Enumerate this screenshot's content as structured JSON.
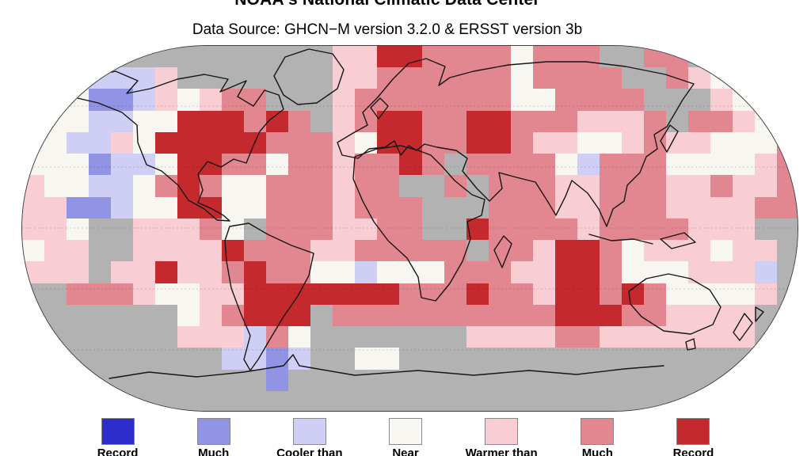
{
  "header": {
    "title": "NOAA's National Climatic Data Center",
    "subtitle": "Data Source: GHCN−M version 3.2.0 & ERSST version 3b"
  },
  "map": {
    "projection": "robinson-world-grid",
    "cols": 35,
    "rows": 17,
    "palette": {
      "D": "#2d2dcb",
      "B": "#9193e4",
      "C": "#cfcff5",
      "W": "#f7f6f1",
      "P": "#f8cdd3",
      "M": "#e2878f",
      "R": "#c42a2d",
      "G": "#b2b2b2"
    },
    "palette_meaning": {
      "D": "record-coldest",
      "B": "much-cooler-than-average",
      "C": "cooler-than-average",
      "W": "near-average",
      "P": "warmer-than-average",
      "M": "much-warmer-than-average",
      "R": "record-warmest",
      "G": "missing-data"
    },
    "grid_rows": [
      "GGGGGGGGGGGGGGPPRRMMMMWMMMGGMMGGGGG",
      "GGWCCCPGGGGGGGPPMMMMMMWMMMMGGMPWWWG",
      "WWWBBCPWPMMGGGPMMMMMMMWWMMMMGGGPWGG",
      "WWWCCWWRRRMRMGPMRRMMRRMMMPPPMGMMPWG",
      "WWCCPWRRRRRMMMPWRRMMRRMPPWWPMPPWWWM",
      "WWWBCCWRRMMWMMPMMRMGMMMMWCMMMWWWWPM",
      "PWWCCWMRMWWMMMPMMGGMGMMMPPMMMPPMPPM",
      "PPBBCWWRRWWMMMPMMMGGGMMMPPMMMPPPPMM",
      "PPWGGPPPMWGMMMPPMMGGRMMMMPMMMMPPPGG",
      "WPPGGPPPPRMMMPPMMMMMGMMPRRMWPPPWPPG",
      "PPPGPPRPPMRMMWWCWWWMMMPPRRMWWWPPPCG",
      "GGMMMPWWPPRRRRRRRMMMRMMPRRMRMWWWWPG",
      "GGGGGGGWPMRRRGMMMMMMMMMMRRRMMPPPPGG",
      "GGGGGGGPPPCMWGGGGGGGPPPPMMPPPPPPPGG",
      "GGGGGGGGGCCBCGGWWGGGGGGGGGGGGGGGGGG",
      "GGGGGGGGGGGBGGGGGGGGGGGGGGGGGGGGGGG",
      "GGGGGGGGGGGGGGGGGGGGGGGGGGGGGGGGGGG"
    ]
  },
  "legend": {
    "items": [
      {
        "key": "D",
        "color": "#2d2dcb",
        "label": "Record"
      },
      {
        "key": "B",
        "color": "#9193e4",
        "label": "Much"
      },
      {
        "key": "C",
        "color": "#cfcff5",
        "label": "Cooler than"
      },
      {
        "key": "W",
        "color": "#f7f6f1",
        "label": "Near"
      },
      {
        "key": "P",
        "color": "#f8cdd3",
        "label": "Warmer than"
      },
      {
        "key": "M",
        "color": "#e2878f",
        "label": "Much"
      },
      {
        "key": "R",
        "color": "#c42a2d",
        "label": "Record"
      }
    ]
  }
}
